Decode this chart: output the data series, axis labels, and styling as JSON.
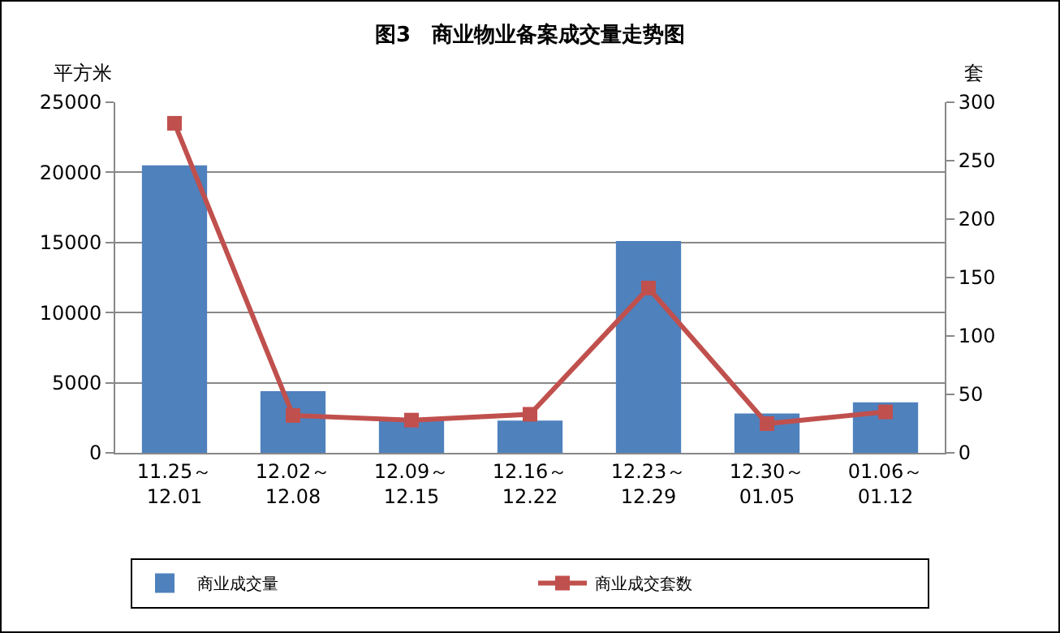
{
  "chart_data": {
    "type": "bar",
    "title": "图3　商业物业备案成交量走势图",
    "ylabel": "平方米",
    "y2label": "套",
    "categories": [
      "11.25～\n12.01",
      "12.02～\n12.08",
      "12.09～\n12.15",
      "12.16～\n12.22",
      "12.23～\n12.29",
      "12.30～\n01.05",
      "01.06～\n01.12"
    ],
    "series": [
      {
        "name": "商业成交量",
        "color": "#4f81bd",
        "values": [
          20500,
          4400,
          2400,
          2300,
          15100,
          2800,
          3600
        ]
      },
      {
        "name": "商业成交套数",
        "type": "line",
        "axis": "y2",
        "color": "#c0504d",
        "values": [
          282,
          32,
          28,
          33,
          141,
          25,
          35
        ]
      }
    ],
    "ylim": [
      0,
      25000
    ],
    "yticks": [
      0,
      5000,
      10000,
      15000,
      20000,
      25000
    ],
    "y2lim": [
      0,
      300
    ],
    "y2ticks": [
      0,
      50,
      100,
      150,
      200,
      250,
      300
    ],
    "grid": "y",
    "legend": "bottom",
    "marker": "square"
  }
}
